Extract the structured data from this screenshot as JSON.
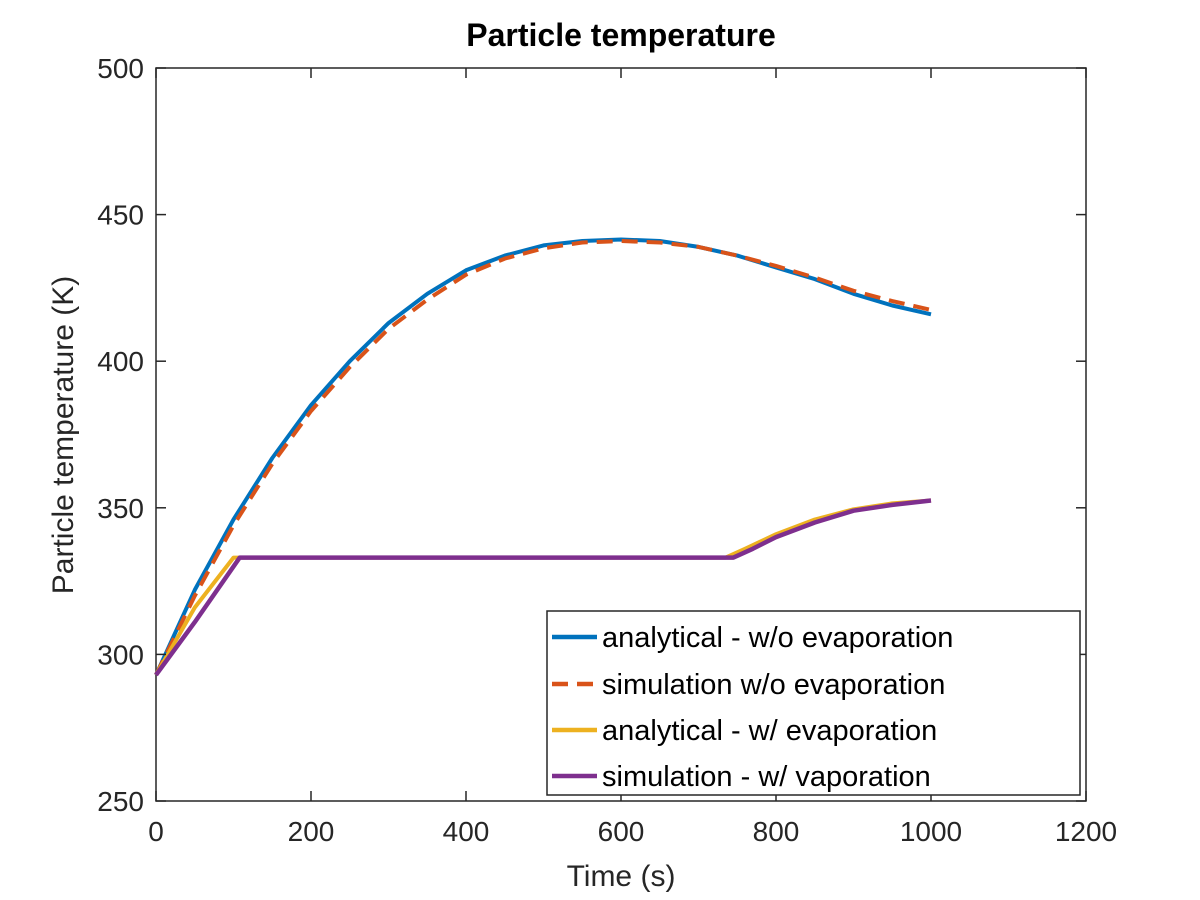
{
  "chart_data": {
    "type": "line",
    "title": "Particle temperature",
    "xlabel": "Time (s)",
    "ylabel": "Particle temperature (K)",
    "xlim": [
      0,
      1200
    ],
    "ylim": [
      250,
      500
    ],
    "xticks": [
      0,
      200,
      400,
      600,
      800,
      1000,
      1200
    ],
    "yticks": [
      250,
      300,
      350,
      400,
      450,
      500
    ],
    "grid": false,
    "legend_position": "bottom-right",
    "series": [
      {
        "name": "analytical - w/o evaporation",
        "color": "#0072BD",
        "style": "solid",
        "x": [
          0,
          50,
          100,
          150,
          200,
          250,
          300,
          350,
          400,
          450,
          500,
          550,
          600,
          650,
          700,
          750,
          800,
          850,
          900,
          950,
          1000
        ],
        "y": [
          293,
          322,
          346,
          367,
          385,
          400,
          413,
          423,
          431,
          436,
          439.5,
          441,
          441.5,
          441,
          439,
          436,
          432,
          428,
          423,
          419,
          416
        ]
      },
      {
        "name": "simulation w/o evaporation",
        "color": "#D95319",
        "style": "dashed",
        "x": [
          0,
          50,
          100,
          150,
          200,
          250,
          300,
          350,
          400,
          450,
          500,
          550,
          600,
          650,
          700,
          750,
          800,
          850,
          900,
          950,
          1000
        ],
        "y": [
          293,
          320,
          344,
          365,
          383,
          398,
          411,
          421,
          429.5,
          435,
          438.5,
          440.5,
          441,
          440.5,
          439,
          436,
          432.5,
          428.5,
          424,
          420.5,
          417.5
        ]
      },
      {
        "name": "analytical - w/ evaporation",
        "color": "#EDB120",
        "style": "solid",
        "x": [
          0,
          50,
          100,
          110,
          200,
          300,
          400,
          500,
          600,
          700,
          735,
          760,
          800,
          850,
          900,
          950,
          1000
        ],
        "y": [
          293,
          316,
          333,
          333,
          333,
          333,
          333,
          333,
          333,
          333,
          333,
          336,
          341,
          346,
          349.5,
          351.5,
          352.5
        ]
      },
      {
        "name": "simulation - w/ vaporation",
        "color": "#7E2F8E",
        "style": "solid",
        "x": [
          0,
          50,
          108,
          200,
          300,
          400,
          500,
          600,
          700,
          745,
          770,
          800,
          850,
          900,
          950,
          1000
        ],
        "y": [
          293,
          311,
          333,
          333,
          333,
          333,
          333,
          333,
          333,
          333,
          336,
          340,
          345,
          349,
          351,
          352.5
        ]
      }
    ]
  }
}
